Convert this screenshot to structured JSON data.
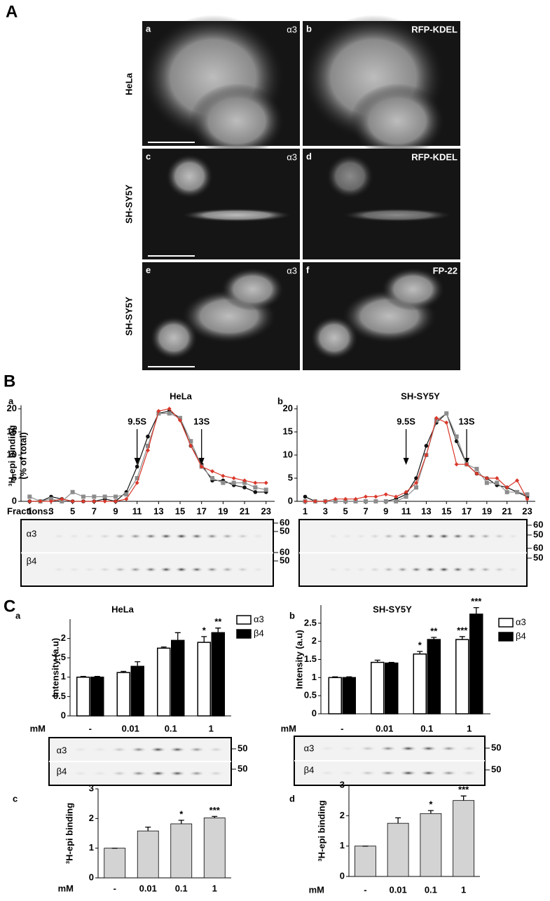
{
  "figure_labels": [
    "A",
    "B",
    "C"
  ],
  "panel_a": {
    "rows": [
      "HeLa",
      "SH-SY5Y",
      "SH-SY5Y"
    ],
    "panels": [
      {
        "letter": "a",
        "channel": "α3"
      },
      {
        "letter": "b",
        "channel": "RFP-KDEL"
      },
      {
        "letter": "c",
        "channel": "α3"
      },
      {
        "letter": "d",
        "channel": "RFP-KDEL"
      },
      {
        "letter": "e",
        "channel": "α3"
      },
      {
        "letter": "f",
        "channel": "FP-22"
      }
    ]
  },
  "chart_data": [
    {
      "type": "line",
      "panel": "a",
      "title": "HeLa",
      "y_label": [
        "³H-epi binding",
        "(% of total)"
      ],
      "x_label": "Fractions:",
      "x": [
        1,
        2,
        3,
        4,
        5,
        6,
        7,
        8,
        9,
        10,
        11,
        12,
        13,
        14,
        15,
        16,
        17,
        18,
        19,
        20,
        21,
        22,
        23
      ],
      "xlim": [
        0.2,
        23.8
      ],
      "xticks": [
        1,
        3,
        5,
        7,
        9,
        11,
        13,
        15,
        17,
        19,
        21,
        23
      ],
      "ylim": [
        0,
        20
      ],
      "yticks": [
        0,
        5,
        10,
        15,
        20
      ],
      "annotations": [
        {
          "text": "9.5S",
          "x": 11
        },
        {
          "text": "13S",
          "x": 17
        }
      ],
      "series": [
        {
          "color": "#111111",
          "marker": "circle",
          "values": [
            0,
            0,
            1,
            0.5,
            0,
            0,
            0,
            0.5,
            0,
            2,
            7.5,
            14,
            19,
            19.5,
            18,
            12,
            8,
            4.5,
            4.5,
            3.5,
            3,
            2,
            2
          ]
        },
        {
          "color": "#8c8c8c",
          "marker": "square",
          "values": [
            1,
            0,
            0.5,
            0,
            2,
            1,
            1,
            1,
            1,
            1.5,
            5,
            12,
            19,
            19,
            18,
            13,
            7.5,
            5,
            4,
            4,
            4,
            3,
            2.5
          ]
        },
        {
          "color": "#d9382b",
          "marker": "diamond",
          "values": [
            0,
            0,
            0,
            0.5,
            0,
            0,
            0,
            0,
            0,
            0.5,
            4,
            11,
            19.5,
            20,
            17.5,
            12,
            7.5,
            6.5,
            5.5,
            5,
            4.5,
            4,
            4
          ]
        }
      ],
      "blot_labels": [
        "α3",
        "β4"
      ],
      "blot_markers": [
        "60",
        "50",
        "60",
        "50"
      ]
    },
    {
      "type": "line",
      "panel": "b",
      "title": "SH-SY5Y",
      "x": [
        1,
        2,
        3,
        4,
        5,
        6,
        7,
        8,
        9,
        10,
        11,
        12,
        13,
        14,
        15,
        16,
        17,
        18,
        19,
        20,
        21,
        22,
        23
      ],
      "xlim": [
        0.2,
        23.8
      ],
      "xticks": [
        1,
        3,
        5,
        7,
        9,
        11,
        13,
        15,
        17,
        19,
        21,
        23
      ],
      "ylim": [
        0,
        20
      ],
      "yticks": [
        0,
        5,
        10,
        15,
        20
      ],
      "annotations": [
        {
          "text": "9.5S",
          "x": 11
        },
        {
          "text": "13S",
          "x": 17
        }
      ],
      "series": [
        {
          "color": "#111111",
          "marker": "circle",
          "values": [
            1,
            0,
            0,
            0,
            0,
            0,
            0,
            0,
            0,
            0.5,
            1.5,
            5,
            12,
            17,
            19,
            13,
            8,
            6,
            5,
            3.5,
            3,
            2,
            1
          ]
        },
        {
          "color": "#8c8c8c",
          "marker": "square",
          "values": [
            0,
            0,
            0,
            0,
            0,
            0,
            0,
            0,
            0,
            0,
            1,
            3,
            10,
            17.5,
            19,
            14,
            8,
            7,
            4,
            4,
            2,
            2,
            1.5
          ]
        },
        {
          "color": "#d9382b",
          "marker": "diamond",
          "values": [
            0,
            0,
            0,
            0.5,
            0.5,
            0.5,
            1,
            1,
            1.5,
            1,
            2,
            4,
            10,
            18,
            17,
            8,
            8,
            6,
            5,
            5,
            3,
            4.5,
            0.5
          ]
        }
      ],
      "blot_labels": [
        "α3",
        "β4"
      ],
      "blot_markers": [
        "60",
        "50",
        "60",
        "50"
      ]
    },
    {
      "type": "bar",
      "panel": "a",
      "title": "HeLa",
      "y_label": "Intensity (a.u)",
      "x_label": "mM",
      "categories": [
        "-",
        "0.01",
        "0.1",
        "1"
      ],
      "ylim": [
        0,
        2.5
      ],
      "yticks": [
        0,
        0.5,
        1,
        1.5,
        2
      ],
      "series": [
        {
          "name": "α3",
          "color": "#ffffff",
          "values": [
            1,
            1.12,
            1.75,
            1.9
          ],
          "errors": [
            0.02,
            0.03,
            0.03,
            0.15
          ],
          "annotations": [
            null,
            null,
            null,
            "*"
          ]
        },
        {
          "name": "β4",
          "color": "#000000",
          "values": [
            1,
            1.28,
            1.95,
            2.15
          ],
          "errors": [
            0.02,
            0.12,
            0.2,
            0.12
          ],
          "annotations": [
            null,
            null,
            null,
            "**"
          ]
        }
      ],
      "blot_labels": [
        "α3",
        "β4"
      ],
      "blot_markers": [
        "50",
        "50"
      ]
    },
    {
      "type": "bar",
      "panel": "b",
      "title": "SH-SY5Y",
      "y_label": "Intensity (a.u)",
      "x_label": "mM",
      "categories": [
        "-",
        "0.01",
        "0.1",
        "1"
      ],
      "ylim": [
        0,
        3
      ],
      "yticks": [
        0,
        0.5,
        1,
        1.5,
        2,
        2.5
      ],
      "series": [
        {
          "name": "α3",
          "color": "#ffffff",
          "values": [
            1,
            1.42,
            1.65,
            2.05
          ],
          "errors": [
            0.02,
            0.06,
            0.07,
            0.08
          ],
          "annotations": [
            null,
            null,
            "*",
            "***"
          ]
        },
        {
          "name": "β4",
          "color": "#000000",
          "values": [
            1,
            1.4,
            2.05,
            2.75
          ],
          "errors": [
            0.02,
            0.02,
            0.06,
            0.18
          ],
          "annotations": [
            null,
            null,
            "**",
            "***"
          ]
        }
      ],
      "blot_labels": [
        "α3",
        "β4"
      ],
      "blot_markers": [
        "50",
        "50"
      ]
    },
    {
      "type": "bar",
      "panel": "c",
      "y_label": "³H-epi binding",
      "x_label": "mM",
      "categories": [
        "-",
        "0.01",
        "0.1",
        "1"
      ],
      "ylim": [
        0,
        3
      ],
      "yticks": [
        0,
        1,
        2,
        3
      ],
      "series": [
        {
          "color": "#d3d3d3",
          "values": [
            1,
            1.58,
            1.82,
            2.02
          ],
          "errors": [
            0,
            0.13,
            0.12,
            0.05
          ],
          "annotations": [
            null,
            null,
            "*",
            "***"
          ]
        }
      ]
    },
    {
      "type": "bar",
      "panel": "d",
      "y_label": "³H-epi binding",
      "x_label": "mM",
      "categories": [
        "-",
        "0.01",
        "0.1",
        "1"
      ],
      "ylim": [
        0,
        3
      ],
      "yticks": [
        0,
        1,
        2,
        3
      ],
      "series": [
        {
          "color": "#d3d3d3",
          "values": [
            1,
            1.75,
            2.07,
            2.5
          ],
          "errors": [
            0,
            0.18,
            0.1,
            0.15
          ],
          "annotations": [
            null,
            null,
            "*",
            "***"
          ]
        }
      ]
    }
  ]
}
